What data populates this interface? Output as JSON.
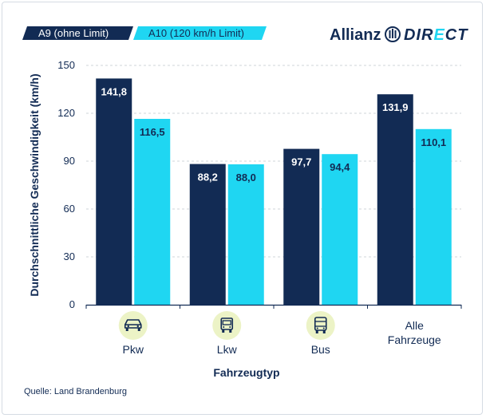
{
  "legend": {
    "a9_label": "A9 (ohne Limit)",
    "a10_label": "A10 (120 km/h Limit)"
  },
  "brand": {
    "name": "Allianz",
    "suffix_pre": "DIR",
    "suffix_accent": "E",
    "suffix_post": "CT"
  },
  "source": "Quelle: Land Brandenburg",
  "colors": {
    "a9": "#122b54",
    "a10": "#1fd6f2",
    "icon_bg": "#ecf3c6",
    "grid": "#cfd4da",
    "text": "#122b54"
  },
  "chart_data": {
    "type": "bar",
    "categories": [
      "Pkw",
      "Lkw",
      "Bus",
      "Alle Fahrzeuge"
    ],
    "category_icons": [
      "car-icon",
      "truck-icon",
      "bus-icon",
      null
    ],
    "series": [
      {
        "name": "A9 (ohne Limit)",
        "values": [
          141.8,
          88.2,
          97.7,
          131.9
        ],
        "labels": [
          "141,8",
          "88,2",
          "97,7",
          "131,9"
        ]
      },
      {
        "name": "A10 (120 km/h Limit)",
        "values": [
          116.5,
          88.0,
          94.4,
          110.1
        ],
        "labels": [
          "116,5",
          "88,0",
          "94,4",
          "110,1"
        ]
      }
    ],
    "yticks": [
      0,
      30,
      60,
      90,
      120,
      150
    ],
    "ylim": [
      0,
      150
    ],
    "xlabel": "Fahrzeugtyp",
    "ylabel": "Durchschnittliche Geschwindigkeit (km/h)",
    "grid": true,
    "legend_position": "top-left"
  }
}
